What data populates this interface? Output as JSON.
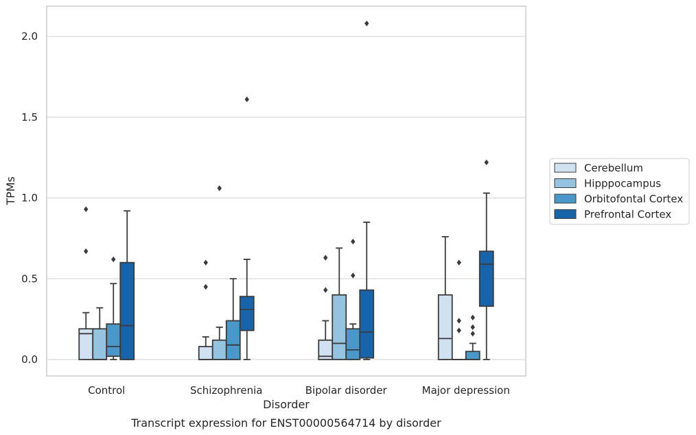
{
  "chart_data": {
    "type": "boxplot",
    "caption": "Transcript expression for ENST00000564714 by disorder",
    "xlabel": "Disorder",
    "ylabel": "TPMs",
    "ylim": [
      -0.1,
      2.19
    ],
    "yticks": [
      0.0,
      0.5,
      1.0,
      1.5,
      2.0
    ],
    "ytick_labels": [
      "0.0",
      "0.5",
      "1.0",
      "1.5",
      "2.0"
    ],
    "grid": "horizontal",
    "legend_position": "right",
    "categories": [
      "Control",
      "Schizophrenia",
      "Bipolar disorder",
      "Major depression"
    ],
    "series": [
      {
        "name": "Cerebellum",
        "color": "#d0e1f2",
        "boxes": [
          {
            "whislo": 0.0,
            "q1": 0.0,
            "med": 0.16,
            "q3": 0.19,
            "whishi": 0.29,
            "fliers": [
              0.67,
              0.93
            ]
          },
          {
            "whislo": 0.0,
            "q1": 0.0,
            "med": 0.0,
            "q3": 0.08,
            "whishi": 0.14,
            "fliers": [
              0.45,
              0.6
            ]
          },
          {
            "whislo": 0.0,
            "q1": 0.0,
            "med": 0.02,
            "q3": 0.12,
            "whishi": 0.24,
            "fliers": [
              0.43,
              0.63
            ]
          },
          {
            "whislo": 0.0,
            "q1": 0.0,
            "med": 0.13,
            "q3": 0.4,
            "whishi": 0.76,
            "fliers": []
          }
        ]
      },
      {
        "name": "Hipppocampus",
        "color": "#94c4df",
        "boxes": [
          {
            "whislo": 0.0,
            "q1": 0.0,
            "med": 0.0,
            "q3": 0.19,
            "whishi": 0.32,
            "fliers": []
          },
          {
            "whislo": 0.0,
            "q1": 0.0,
            "med": 0.0,
            "q3": 0.12,
            "whishi": 0.2,
            "fliers": [
              1.06
            ]
          },
          {
            "whislo": 0.0,
            "q1": 0.0,
            "med": 0.1,
            "q3": 0.4,
            "whishi": 0.69,
            "fliers": []
          },
          {
            "whislo": 0.0,
            "q1": 0.0,
            "med": 0.0,
            "q3": 0.0,
            "whishi": 0.0,
            "fliers": [
              0.18,
              0.24,
              0.6
            ]
          }
        ]
      },
      {
        "name": "Orbitofontal Cortex",
        "color": "#4a98c9",
        "boxes": [
          {
            "whislo": 0.0,
            "q1": 0.02,
            "med": 0.08,
            "q3": 0.22,
            "whishi": 0.47,
            "fliers": [
              0.62
            ]
          },
          {
            "whislo": 0.0,
            "q1": 0.0,
            "med": 0.09,
            "q3": 0.24,
            "whishi": 0.5,
            "fliers": []
          },
          {
            "whislo": 0.0,
            "q1": 0.0,
            "med": 0.06,
            "q3": 0.19,
            "whishi": 0.22,
            "fliers": [
              0.52,
              0.73
            ]
          },
          {
            "whislo": 0.0,
            "q1": 0.0,
            "med": 0.0,
            "q3": 0.05,
            "whishi": 0.1,
            "fliers": [
              0.16,
              0.2,
              0.26
            ]
          }
        ]
      },
      {
        "name": "Prefrontal Cortex",
        "color": "#1764ab",
        "boxes": [
          {
            "whislo": 0.0,
            "q1": 0.0,
            "med": 0.21,
            "q3": 0.6,
            "whishi": 0.92,
            "fliers": []
          },
          {
            "whislo": 0.0,
            "q1": 0.18,
            "med": 0.31,
            "q3": 0.39,
            "whishi": 0.62,
            "fliers": [
              1.61
            ]
          },
          {
            "whislo": 0.0,
            "q1": 0.01,
            "med": 0.17,
            "q3": 0.43,
            "whishi": 0.85,
            "fliers": [
              2.08
            ]
          },
          {
            "whislo": 0.0,
            "q1": 0.33,
            "med": 0.59,
            "q3": 0.67,
            "whishi": 1.03,
            "fliers": [
              1.22
            ]
          }
        ]
      }
    ]
  }
}
